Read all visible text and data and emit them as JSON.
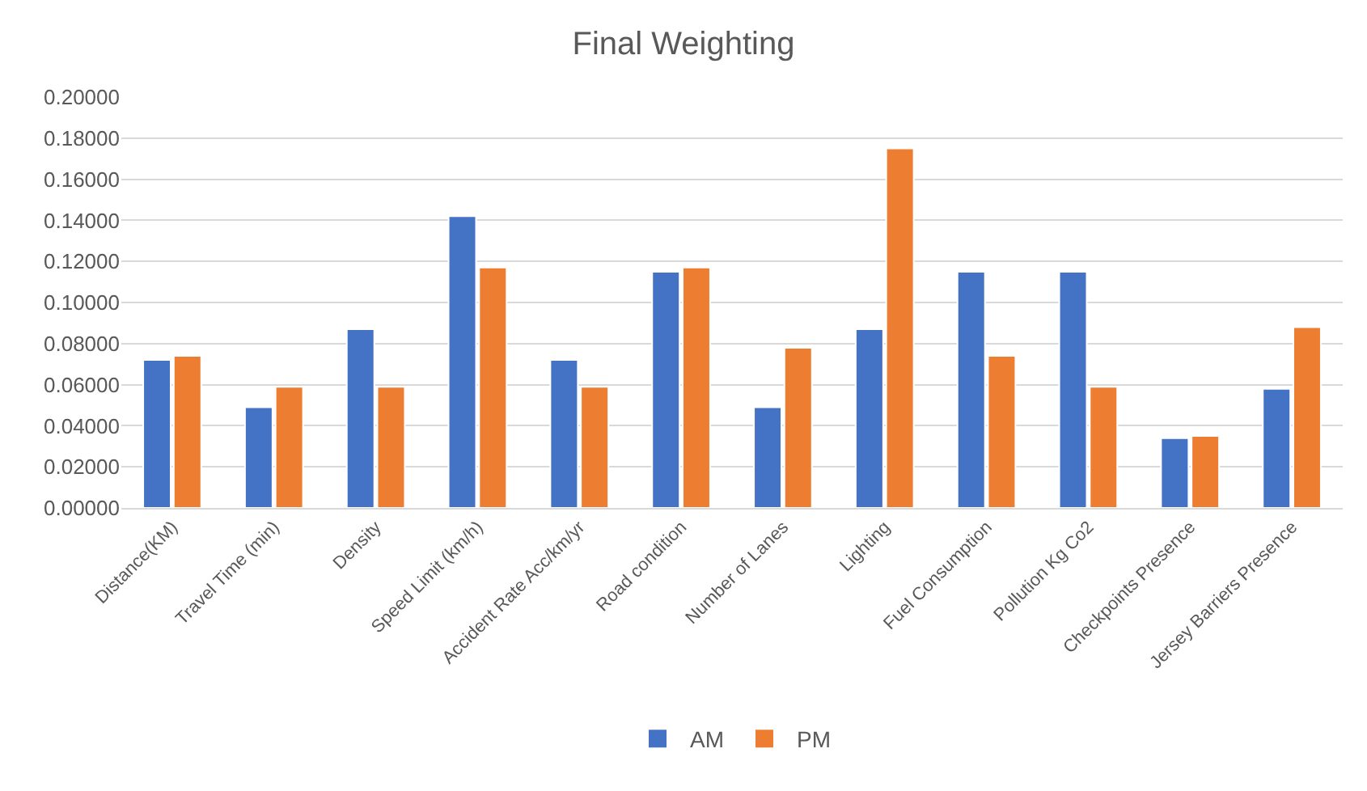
{
  "chart_data": {
    "type": "bar",
    "title": "Final Weighting",
    "categories": [
      "Distance(KM)",
      "Travel Time (min)",
      "Density",
      "Speed Limit (km/h)",
      "Accident Rate Acc/km/yr",
      "Road condition",
      "Number of Lanes",
      "Lighting",
      "Fuel Consumption",
      "Pollution Kg Co2",
      "Checkpoints Presence",
      "Jersey Barriers Presence"
    ],
    "series": [
      {
        "name": "AM",
        "color": "#4472c4",
        "values": [
          0.072,
          0.049,
          0.087,
          0.142,
          0.072,
          0.115,
          0.049,
          0.087,
          0.115,
          0.115,
          0.034,
          0.058
        ]
      },
      {
        "name": "PM",
        "color": "#ed7d31",
        "values": [
          0.074,
          0.059,
          0.059,
          0.117,
          0.059,
          0.117,
          0.078,
          0.175,
          0.074,
          0.059,
          0.035,
          0.088
        ]
      }
    ],
    "ylim": [
      0,
      0.2
    ],
    "yticks": [
      {
        "value": 0,
        "label": "0.00000"
      },
      {
        "value": 0.02,
        "label": "0.02000"
      },
      {
        "value": 0.04,
        "label": "0.04000"
      },
      {
        "value": 0.06,
        "label": "0.06000"
      },
      {
        "value": 0.08,
        "label": "0.08000"
      },
      {
        "value": 0.1,
        "label": "0.10000"
      },
      {
        "value": 0.12,
        "label": "0.12000"
      },
      {
        "value": 0.14,
        "label": "0.14000"
      },
      {
        "value": 0.16,
        "label": "0.16000"
      },
      {
        "value": 0.18,
        "label": "0.18000"
      },
      {
        "value": 0.2,
        "label": "0.20000"
      }
    ],
    "grid": "y",
    "legend": "bottom"
  }
}
